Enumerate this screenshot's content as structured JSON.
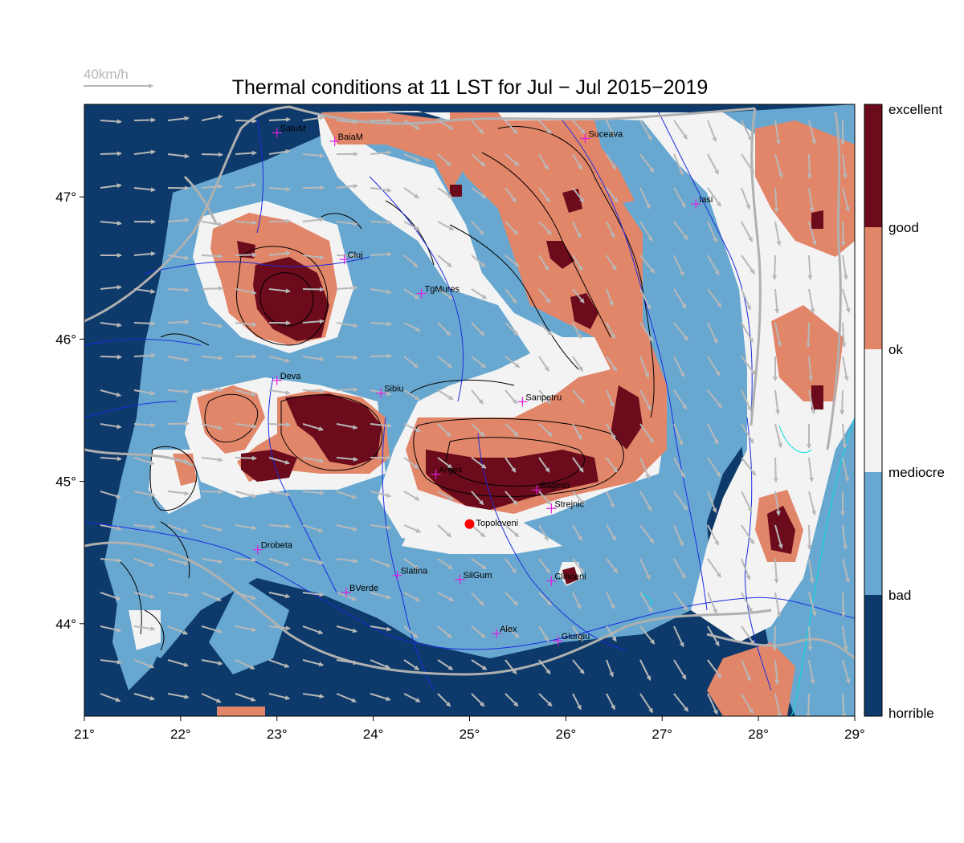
{
  "title": "Thermal conditions at 11 LST for Jul − Jul  2015−2019",
  "wind_reference": {
    "label": "40km/h"
  },
  "colors": {
    "horrible": "#0d3a6a",
    "bad": "#68a8d0",
    "mediocre": "#f3f3f3",
    "ok": "#e2866a",
    "good": "#6b0b1c",
    "city_marker": "#e01fe0",
    "site_marker": "#ff0000",
    "rivers": "#1a2be0",
    "borders": "#b0b0b0",
    "wind_arrows": "#b8b8b8"
  },
  "map": {
    "lon_range": [
      21,
      29
    ],
    "lat_range": [
      43.35,
      47.65
    ],
    "lon_ticks": [
      "21°",
      "22°",
      "23°",
      "24°",
      "25°",
      "26°",
      "27°",
      "28°",
      "29°"
    ],
    "lat_ticks": [
      "44°",
      "45°",
      "46°",
      "47°"
    ],
    "cities": [
      {
        "name": "SatuM",
        "lon": 23.0,
        "lat": 47.45
      },
      {
        "name": "BaiaM",
        "lon": 23.6,
        "lat": 47.39
      },
      {
        "name": "Suceava",
        "lon": 26.2,
        "lat": 47.41
      },
      {
        "name": "Iasi",
        "lon": 27.35,
        "lat": 46.95
      },
      {
        "name": "Cluj",
        "lon": 23.7,
        "lat": 46.56
      },
      {
        "name": "TgMures",
        "lon": 24.5,
        "lat": 46.32
      },
      {
        "name": "Deva",
        "lon": 23.0,
        "lat": 45.71
      },
      {
        "name": "Sibiu",
        "lon": 24.08,
        "lat": 45.62
      },
      {
        "name": "Sanpetru",
        "lon": 25.55,
        "lat": 45.56
      },
      {
        "name": "Arges",
        "lon": 24.65,
        "lat": 45.05
      },
      {
        "name": "Bagesti",
        "lon": 25.7,
        "lat": 44.94
      },
      {
        "name": "Strejnic",
        "lon": 25.85,
        "lat": 44.81
      },
      {
        "name": "Drobeta",
        "lon": 22.8,
        "lat": 44.52
      },
      {
        "name": "Slatina",
        "lon": 24.25,
        "lat": 44.34
      },
      {
        "name": "SilGum",
        "lon": 24.9,
        "lat": 44.31
      },
      {
        "name": "Clinceni",
        "lon": 25.85,
        "lat": 44.3
      },
      {
        "name": "BVerde",
        "lon": 23.72,
        "lat": 44.22
      },
      {
        "name": "Alex",
        "lon": 25.28,
        "lat": 43.93
      },
      {
        "name": "Giurgiu",
        "lon": 25.92,
        "lat": 43.88
      }
    ],
    "site": {
      "name": "Topoloveni",
      "lon": 25.0,
      "lat": 44.7
    }
  },
  "colorbar": {
    "labels": [
      "excellent",
      "good",
      "ok",
      "mediocre",
      "bad",
      "horrible"
    ]
  }
}
